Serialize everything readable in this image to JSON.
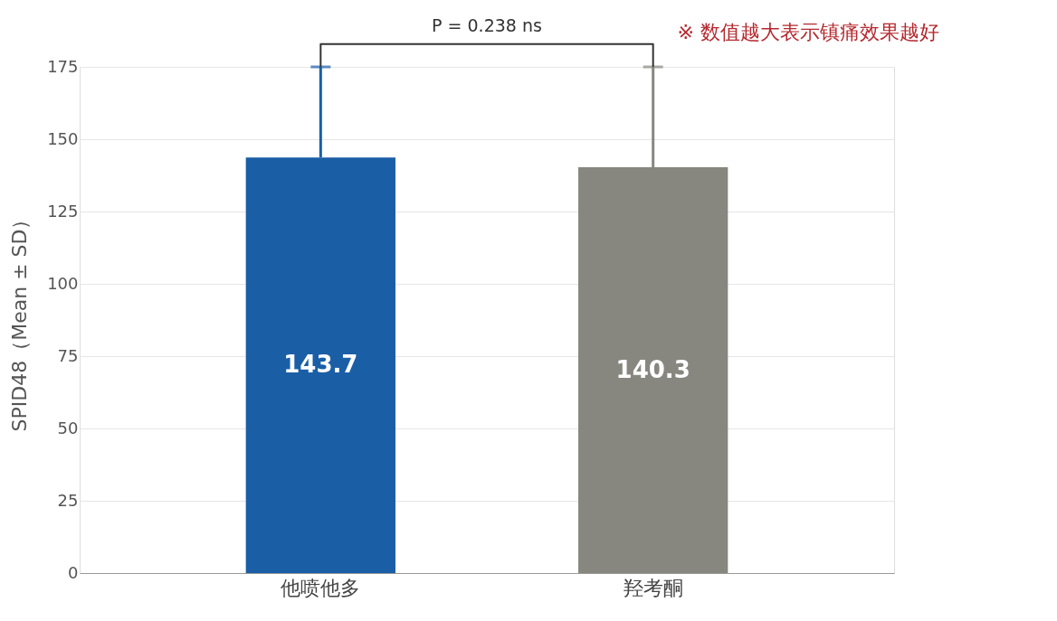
{
  "chart_data": {
    "type": "bar",
    "ylabel": "SPID48（Mean ± SD）",
    "categories": [
      "他喷他多",
      "羟考酮"
    ],
    "values": [
      143.7,
      140.3
    ],
    "colors": [
      "#1a5ea6",
      "#878780"
    ],
    "errors": [
      [
        143.7,
        175
      ],
      [
        140.3,
        175
      ]
    ],
    "ylim": [
      0,
      175
    ],
    "yticks": [
      0,
      25,
      50,
      75,
      100,
      125,
      150,
      175
    ],
    "grid": "y",
    "data_labels": true,
    "annotations": [
      "P = 0.238  ns",
      "※ 数值越大表示镇痛效果越好"
    ]
  }
}
